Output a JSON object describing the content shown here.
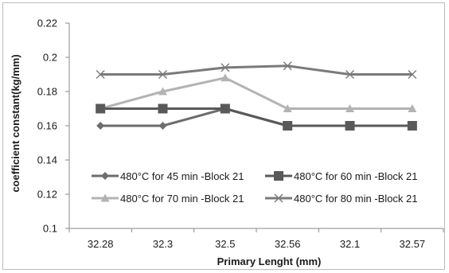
{
  "chart_data": {
    "type": "line",
    "categories": [
      "32.28",
      "32.3",
      "32.5",
      "32.56",
      "32.1",
      "32.57"
    ],
    "xlabel": "Primary Lenght (mm)",
    "ylabel": "coefficient constant(kg/mm)",
    "ylim": [
      0.1,
      0.22
    ],
    "yticks": [
      "0.1",
      "0.12",
      "0.14",
      "0.16",
      "0.18",
      "0.2",
      "0.22"
    ],
    "grid": false,
    "legend_position": "bottom-inside",
    "series": [
      {
        "name": "480°C for 45 min -Block 21",
        "values": [
          0.16,
          0.16,
          0.17,
          0.16,
          0.16,
          0.16
        ],
        "color": "#6d6d6d",
        "marker": "diamond"
      },
      {
        "name": "480°C for 60 min -Block 21",
        "values": [
          0.17,
          0.17,
          0.17,
          0.16,
          0.16,
          0.16
        ],
        "color": "#595959",
        "marker": "square"
      },
      {
        "name": "480°C for 70 min -Block 21",
        "values": [
          0.17,
          0.18,
          0.188,
          0.17,
          0.17,
          0.17
        ],
        "color": "#b3b3b3",
        "marker": "triangle"
      },
      {
        "name": "480°C for 80 min -Block 21",
        "values": [
          0.19,
          0.19,
          0.194,
          0.195,
          0.19,
          0.19
        ],
        "color": "#7a7a7a",
        "marker": "x"
      }
    ]
  }
}
